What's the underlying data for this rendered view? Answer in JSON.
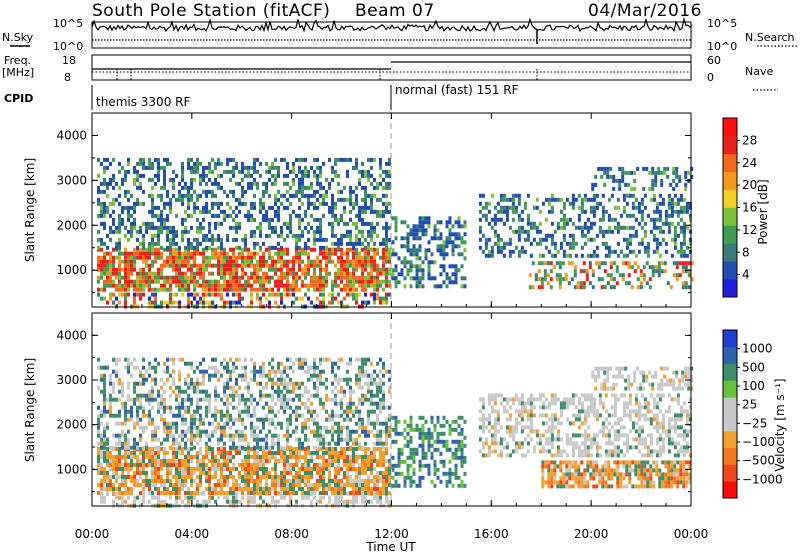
{
  "header": {
    "station": "South Pole Station (fitACF)",
    "beam": "Beam 07",
    "date": "04/Mar/2016"
  },
  "top_panels": {
    "nsky_label": "N.Sky",
    "nsky_ticks": [
      "10^5",
      "10^0"
    ],
    "nsearch_label": "N.Search",
    "nsearch_ticks": [
      "10^5",
      "10^0"
    ],
    "freq_label_1": "Freq.",
    "freq_label_2": "[MHz]",
    "freq_ticks": [
      "18",
      "8"
    ],
    "nave_label": "Nave",
    "nave_ticks": [
      "60",
      "0"
    ],
    "cpid_label": "CPID",
    "cpid_segments": [
      {
        "label": "themis 3300 RF",
        "start_hour": 0,
        "end_hour": 12
      },
      {
        "label": "normal (fast) 151 RF",
        "start_hour": 12,
        "end_hour": 24
      }
    ]
  },
  "x_axis": {
    "label": "Time UT",
    "ticks": [
      "00:00",
      "04:00",
      "08:00",
      "12:00",
      "16:00",
      "20:00",
      "00:00"
    ],
    "range_hours": [
      0,
      24
    ]
  },
  "chart_data": [
    {
      "type": "heatmap",
      "quantity": "power",
      "ylabel": "Slant Range [km]",
      "ylim": [
        180,
        4500
      ],
      "yticks": [
        1000,
        2000,
        3000,
        4000
      ],
      "colorbar": {
        "label": "Power [dB]",
        "ticks": [
          "4",
          "8",
          "12",
          "16",
          "20",
          "24",
          "28"
        ],
        "colors": [
          "#1f1fe0",
          "#1f4db0",
          "#3a7a7a",
          "#3f9c55",
          "#7cc03a",
          "#f2d028",
          "#f29a1e",
          "#f2691e",
          "#e8231e",
          "#ff1010"
        ]
      },
      "regions": [
        {
          "t0": 0.2,
          "t1": 11.9,
          "r0": 200,
          "r1": 500,
          "level": "mixed"
        },
        {
          "t0": 0.2,
          "t1": 11.9,
          "r0": 600,
          "r1": 1500,
          "level": "high"
        },
        {
          "t0": 0.2,
          "t1": 11.9,
          "r0": 1500,
          "r1": 3500,
          "level": "low"
        },
        {
          "t0": 12.0,
          "t1": 15.0,
          "r0": 600,
          "r1": 2200,
          "level": "low"
        },
        {
          "t0": 15.5,
          "t1": 24.0,
          "r0": 1300,
          "r1": 2700,
          "level": "low"
        },
        {
          "t0": 17.5,
          "t1": 24.0,
          "r0": 600,
          "r1": 1200,
          "level": "medium"
        },
        {
          "t0": 20.0,
          "t1": 24.0,
          "r0": 2800,
          "r1": 3300,
          "level": "low"
        }
      ]
    },
    {
      "type": "heatmap",
      "quantity": "velocity",
      "ylabel": "Slant Range [km]",
      "ylim": [
        180,
        4500
      ],
      "yticks": [
        1000,
        2000,
        3000,
        4000
      ],
      "colorbar": {
        "label": "Velocity [m s⁻¹]",
        "ticks": [
          "1000",
          "500",
          "100",
          "25",
          "−25",
          "−100",
          "−500",
          "−1000"
        ],
        "colors": [
          "#1f3fd0",
          "#2f63b0",
          "#3d8f6a",
          "#66c23a",
          "#c8c8c8",
          "#c8c8c8",
          "#f2a030",
          "#f27a1e",
          "#f0461e",
          "#ff0a0a"
        ]
      },
      "regions": [
        {
          "t0": 0.2,
          "t1": 11.9,
          "r0": 200,
          "r1": 500,
          "level": "gray"
        },
        {
          "t0": 0.2,
          "t1": 11.9,
          "r0": 500,
          "r1": 1500,
          "level": "negative"
        },
        {
          "t0": 0.2,
          "t1": 11.9,
          "r0": 1500,
          "r1": 3500,
          "level": "mixed"
        },
        {
          "t0": 12.0,
          "t1": 15.0,
          "r0": 600,
          "r1": 2200,
          "level": "positive"
        },
        {
          "t0": 15.5,
          "t1": 24.0,
          "r0": 1300,
          "r1": 2700,
          "level": "gray"
        },
        {
          "t0": 18.0,
          "t1": 24.0,
          "r0": 600,
          "r1": 1200,
          "level": "negative"
        },
        {
          "t0": 20.0,
          "t1": 24.0,
          "r0": 2800,
          "r1": 3300,
          "level": "gray"
        }
      ]
    }
  ]
}
